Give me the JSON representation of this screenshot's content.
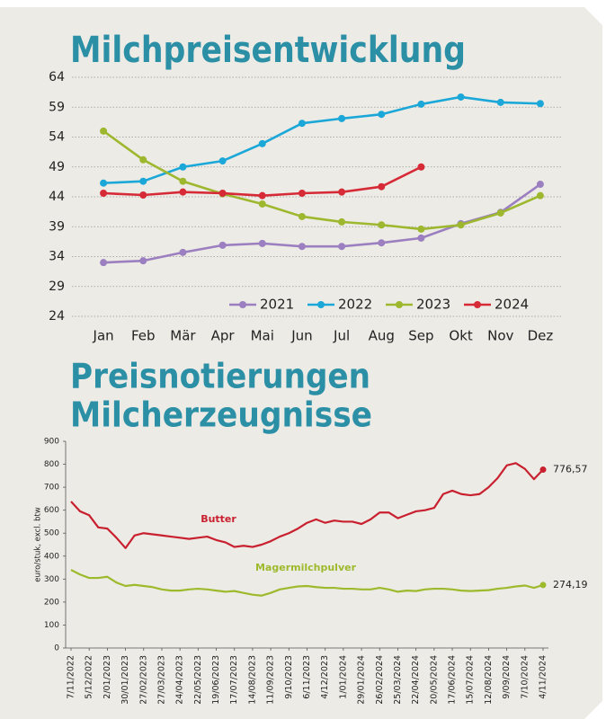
{
  "chart_data": [
    {
      "type": "line",
      "title": "Milchpreisentwicklung",
      "categories": [
        "Jan",
        "Feb",
        "Mär",
        "Apr",
        "Mai",
        "Jun",
        "Jul",
        "Aug",
        "Sep",
        "Okt",
        "Nov",
        "Dez"
      ],
      "series": [
        {
          "name": "2021",
          "color": "#9b7fc0",
          "values": [
            33.0,
            33.3,
            34.7,
            35.9,
            36.2,
            35.7,
            35.7,
            36.3,
            37.1,
            39.5,
            41.4,
            46.1
          ]
        },
        {
          "name": "2022",
          "color": "#1ba8d9",
          "values": [
            46.3,
            46.6,
            49.0,
            50.0,
            52.9,
            56.3,
            57.1,
            57.8,
            59.5,
            60.7,
            59.8,
            59.6
          ]
        },
        {
          "name": "2023",
          "color": "#9db82e",
          "values": [
            55.0,
            50.2,
            46.6,
            44.5,
            42.8,
            40.7,
            39.8,
            39.3,
            38.6,
            39.3,
            41.3,
            44.2
          ]
        },
        {
          "name": "2024",
          "color": "#d62b37",
          "values": [
            44.6,
            44.3,
            44.8,
            44.6,
            44.2,
            44.6,
            44.8,
            45.7,
            49.0,
            null,
            null,
            null
          ]
        }
      ],
      "ylim": [
        24,
        64
      ],
      "yticks": [
        24,
        29,
        34,
        39,
        44,
        49,
        54,
        59,
        64
      ],
      "grid": true,
      "legend": "bottom-right",
      "markers": true
    },
    {
      "type": "line",
      "title": [
        "Preisnotierungen",
        "Milcherzeugnisse"
      ],
      "ylabel": "euro/stuk, excl. btw",
      "categories": [
        "7/11/2022",
        null,
        "5/12/2022",
        null,
        "2/01/2023",
        null,
        "30/01/2023",
        null,
        "27/02/2023",
        null,
        "27/03/2023",
        null,
        "24/04/2023",
        null,
        "22/05/2023",
        null,
        "19/06/2023",
        null,
        "17/07/2023",
        null,
        "14/08/2023",
        null,
        "11/09/2023",
        null,
        "9/10/2023",
        null,
        "6/11/2023",
        null,
        "4/12/2023",
        null,
        "1/01/2024",
        null,
        "29/01/2024",
        null,
        "26/02/2024",
        null,
        "25/03/2024",
        null,
        "22/04/2024",
        null,
        "20/05/2024",
        null,
        "17/06/2024",
        null,
        "15/07/2024",
        null,
        "12/08/2024",
        null,
        "9/09/2024",
        null,
        "7/10/2024",
        null,
        "4/11/2024"
      ],
      "series": [
        {
          "name": "Butter",
          "color": "#c9202f",
          "values": [
            638,
            595,
            578,
            525,
            520,
            480,
            435,
            490,
            500,
            495,
            490,
            485,
            480,
            475,
            480,
            485,
            470,
            460,
            440,
            445,
            440,
            450,
            465,
            485,
            500,
            520,
            545,
            560,
            545,
            555,
            550,
            550,
            540,
            560,
            590,
            590,
            565,
            580,
            595,
            600,
            610,
            670,
            685,
            670,
            665,
            670,
            700,
            740,
            795,
            805,
            780,
            735,
            776.57
          ],
          "value_labels": [
            null,
            null,
            null,
            null,
            null,
            null,
            null,
            null,
            null,
            null,
            null,
            null,
            null,
            null,
            null,
            null,
            null,
            null,
            null,
            null,
            null,
            null,
            null,
            null,
            null,
            null,
            null,
            null,
            null,
            null,
            null,
            null,
            null,
            null,
            null,
            null,
            null,
            null,
            null,
            null,
            null,
            null,
            null,
            null,
            null,
            null,
            null,
            null,
            null,
            null,
            null,
            null,
            "776,57"
          ]
        },
        {
          "name": "Magermilchpulver",
          "color": "#9dba2d",
          "values": [
            340,
            320,
            305,
            305,
            310,
            285,
            270,
            275,
            270,
            265,
            255,
            250,
            250,
            255,
            258,
            255,
            250,
            245,
            248,
            240,
            232,
            228,
            240,
            255,
            262,
            268,
            270,
            265,
            262,
            262,
            258,
            258,
            255,
            255,
            262,
            255,
            245,
            250,
            248,
            255,
            258,
            258,
            255,
            250,
            248,
            250,
            252,
            258,
            262,
            268,
            272,
            262,
            274.19
          ],
          "value_labels": [
            null,
            null,
            null,
            null,
            null,
            null,
            null,
            null,
            null,
            null,
            null,
            null,
            null,
            null,
            null,
            null,
            null,
            null,
            null,
            null,
            null,
            null,
            null,
            null,
            null,
            null,
            null,
            null,
            null,
            null,
            null,
            null,
            null,
            null,
            null,
            null,
            null,
            null,
            null,
            null,
            null,
            null,
            null,
            null,
            null,
            null,
            null,
            null,
            null,
            null,
            null,
            null,
            "274,19"
          ]
        }
      ],
      "ylim": [
        0,
        900
      ],
      "yticks": [
        0,
        100,
        200,
        300,
        400,
        500,
        600,
        700,
        800,
        900
      ]
    }
  ]
}
